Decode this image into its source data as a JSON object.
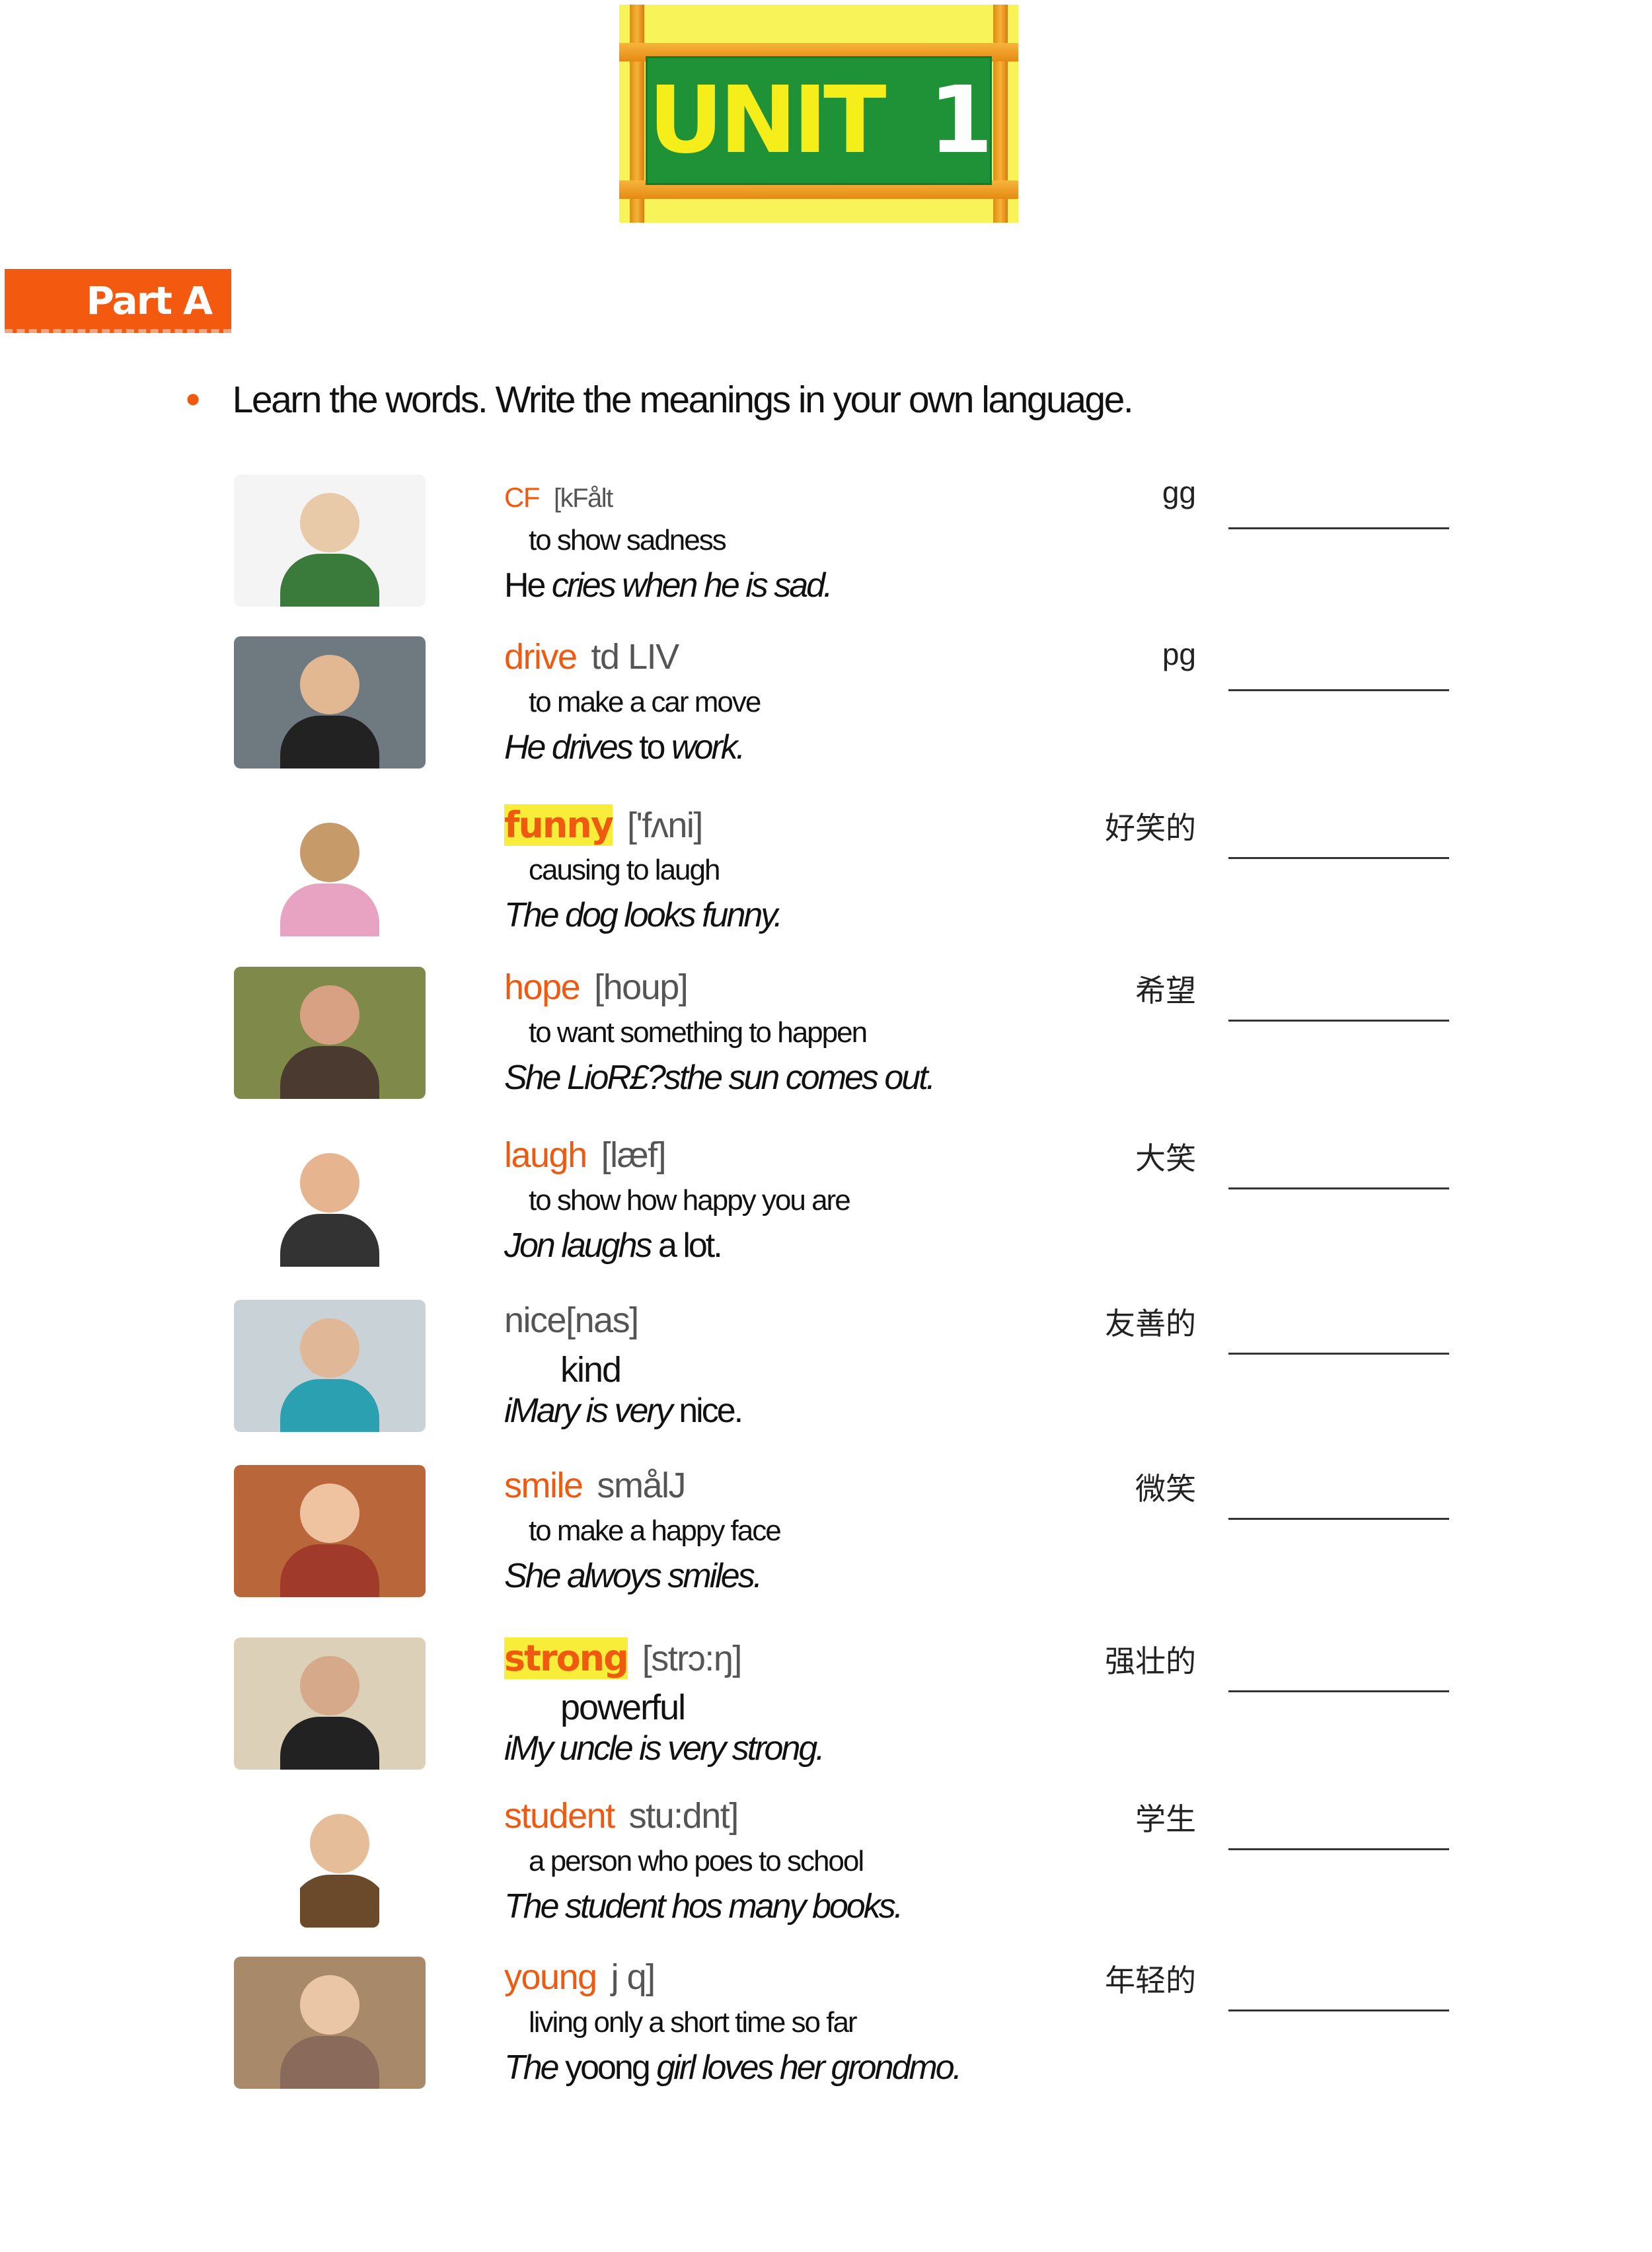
{
  "header": {
    "unit_label": "UNIT",
    "unit_number": "1",
    "part_label": "Part A"
  },
  "instruction": "Learn the words. Write the meanings in your own language.",
  "colors": {
    "accent": "#f05a10",
    "highlight": "#f8ee3a",
    "board_green": "#1f9136",
    "banner_yellow": "#f9f35a"
  },
  "words": [
    {
      "word": "CF",
      "phon": "[kFålt",
      "def": "to show sadness",
      "example": [
        {
          "t": "He ",
          "i": false
        },
        {
          "t": "cries when he is sad.",
          "i": true
        }
      ],
      "meaning": "gg",
      "image": "crying-boy",
      "style": "small"
    },
    {
      "word": "drive",
      "phon": "td LIV",
      "def": "to make a car move",
      "example": [
        {
          "t": "He drives ",
          "i": true
        },
        {
          "t": "to ",
          "i": false
        },
        {
          "t": "work.",
          "i": true
        }
      ],
      "meaning": "pg",
      "image": "man-driving"
    },
    {
      "word": "funny",
      "phon": "['fʌni]",
      "def": "causing  to  laugh",
      "example": [
        {
          "t": "The dog looks funny.",
          "i": true
        }
      ],
      "meaning": "好笑的",
      "image": "dog-costume",
      "style": "hl"
    },
    {
      "word": "hope",
      "phon": "[houp]",
      "def": "to want something to happen",
      "example": [
        {
          "t": "She LioR£?sthe sun comes out.",
          "i": true
        }
      ],
      "meaning": "希望",
      "image": "hoping-woman"
    },
    {
      "word": "laugh",
      "phon": "[læf]",
      "def": "to show how happy you are",
      "example": [
        {
          "t": "Jon laughs ",
          "i": true
        },
        {
          "t": "a lot.",
          "i": false
        }
      ],
      "meaning": "大笑",
      "image": "laughing-woman"
    },
    {
      "word": "nice",
      "phon": "[nas]",
      "def": "kind",
      "example": [
        {
          "t": "iMary is very ",
          "i": true
        },
        {
          "t": "nice.",
          "i": false
        }
      ],
      "meaning": "友善的",
      "image": "helping-elderly",
      "style": "grey"
    },
    {
      "word": "smile",
      "phon": "smålJ",
      "def": "to make a happy face",
      "example": [
        {
          "t": "She alwoys smiles.",
          "i": true
        }
      ],
      "meaning": "微笑",
      "image": "smiling-girl"
    },
    {
      "word": "strong",
      "phon": "[strɔ:ŋ]",
      "def": "powerful",
      "example": [
        {
          "t": "iMy uncle is very strong.",
          "i": true
        }
      ],
      "meaning": "强壮的",
      "image": "weightlifter",
      "style": "hl"
    },
    {
      "word": "student",
      "phon": "stu:dnt]",
      "def": "a person who poes to school",
      "example": [
        {
          "t": "The student hos many books.",
          "i": true
        }
      ],
      "meaning": "学生",
      "image": "student-books"
    },
    {
      "word": "young",
      "phon": "j  q]",
      "def": "living only a short time so far",
      "example": [
        {
          "t": "The ",
          "i": true
        },
        {
          "t": "yoong ",
          "i": false
        },
        {
          "t": "girl loves her grondmo.",
          "i": true
        }
      ],
      "meaning": "年轻的",
      "image": "grandmother-girl"
    }
  ]
}
